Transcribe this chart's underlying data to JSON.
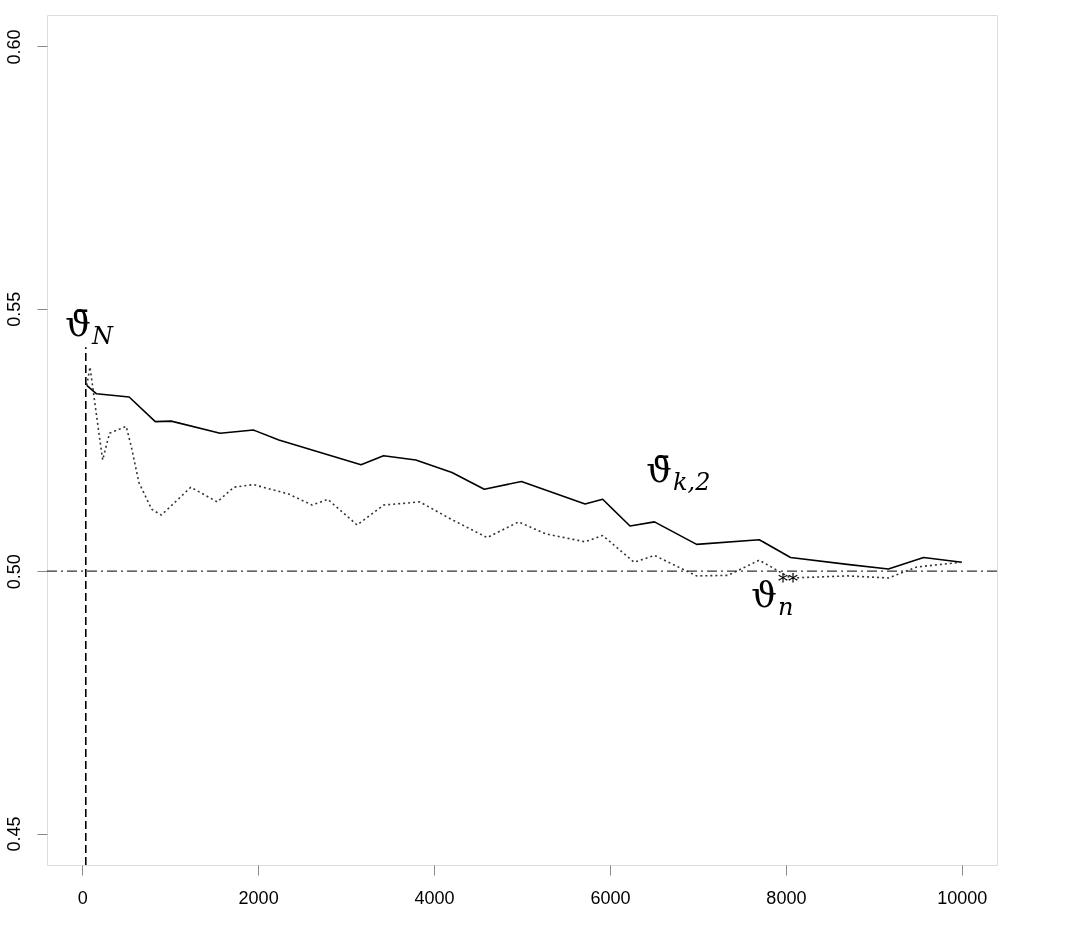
{
  "chart_data": {
    "type": "line",
    "xlim": [
      -400,
      10400
    ],
    "ylim": [
      0.444,
      0.606
    ],
    "xticks": [
      0,
      2000,
      4000,
      6000,
      8000,
      10000
    ],
    "yticks": [
      0.45,
      {
        "value": 0.5,
        "label": "0.50"
      },
      0.55,
      {
        "value": 0.6,
        "label": "0.60"
      }
    ],
    "grid": false,
    "series": [
      {
        "color": "#000000",
        "line_style": "solid",
        "x": [
          52,
          163,
          534,
          831,
          1012,
          1568,
          1947,
          2236,
          3170,
          3426,
          3793,
          4204,
          4571,
          4994,
          5717,
          5917,
          6228,
          6506,
          6985,
          7697,
          8053,
          8697,
          9165,
          9566,
          10000
        ],
        "values": [
          0.5354,
          0.5338,
          0.5332,
          0.5285,
          0.5286,
          0.5263,
          0.5269,
          0.525,
          0.5203,
          0.522,
          0.5212,
          0.5188,
          0.5156,
          0.5171,
          0.5128,
          0.5137,
          0.5086,
          0.5094,
          0.5051,
          0.506,
          0.5026,
          0.5013,
          0.5004,
          0.5026,
          0.5017
        ]
      },
      {
        "color": "#333333",
        "line_style": "dotted",
        "x": [
          52,
          89,
          200,
          233,
          311,
          500,
          556,
          645,
          790,
          901,
          1235,
          1535,
          1724,
          1947,
          2347,
          2614,
          2792,
          3126,
          3426,
          3838,
          4205,
          4605,
          4961,
          5273,
          5717,
          5917,
          6274,
          6507,
          6985,
          7341,
          7697,
          8053,
          8698,
          9165,
          9488,
          10000
        ],
        "values": [
          0.5354,
          0.5389,
          0.5251,
          0.5212,
          0.5263,
          0.5276,
          0.5239,
          0.5169,
          0.5118,
          0.5107,
          0.516,
          0.5132,
          0.516,
          0.5165,
          0.5147,
          0.5126,
          0.5137,
          0.5088,
          0.5126,
          0.5132,
          0.5098,
          0.5064,
          0.5094,
          0.5071,
          0.5056,
          0.5068,
          0.5017,
          0.503,
          0.4991,
          0.4992,
          0.5021,
          0.4987,
          0.4991,
          0.4987,
          0.5008,
          0.5017
        ]
      },
      {
        "color": "#000000",
        "line_style": "dashed",
        "x": [
          41,
          41
        ],
        "values": [
          0.444,
          0.5427
        ]
      }
    ],
    "ref_lines": [
      {
        "axis": "y",
        "value": 0.5,
        "color": "#333333",
        "line_style": "dashed"
      }
    ],
    "annotations": [
      "ϑ̄$_{N}$",
      "ϑ̄$_{k,2}$",
      "ϑ$_{n}$$^{**}$"
    ]
  }
}
